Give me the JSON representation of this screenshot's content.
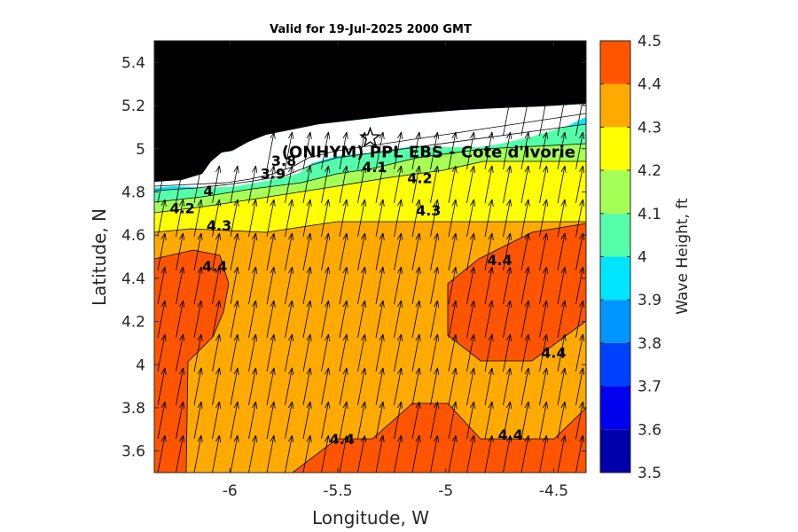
{
  "chart_data": {
    "type": "heatmap",
    "title": "Valid for 19-Jul-2025 2000 GMT",
    "xlabel": "Longitude, W",
    "ylabel": "Latitude, N",
    "xlim": [
      -6.35,
      -4.35
    ],
    "ylim": [
      3.5,
      5.5
    ],
    "xticks": [
      -6,
      -5.5,
      -5,
      -4.5
    ],
    "xtick_labels": [
      "-6",
      "-5.5",
      "-5",
      "-4.5"
    ],
    "yticks": [
      3.6,
      3.8,
      4.0,
      4.2,
      4.4,
      4.6,
      4.8,
      5.0,
      5.2,
      5.4
    ],
    "ytick_labels": [
      "3.6",
      "3.8",
      "4",
      "4.2",
      "4.4",
      "4.6",
      "4.8",
      "5",
      "5.2",
      "5.4"
    ],
    "colorbar": {
      "label": "Wave Height, ft",
      "range": [
        3.5,
        4.5
      ],
      "ticks": [
        "3.5",
        "3.6",
        "3.7",
        "3.8",
        "3.9",
        "4",
        "4.1",
        "4.2",
        "4.3",
        "4.4",
        "4.5"
      ],
      "levels": [
        {
          "from": 3.5,
          "to": 3.6,
          "color": "#0000aa"
        },
        {
          "from": 3.6,
          "to": 3.7,
          "color": "#0000ee"
        },
        {
          "from": 3.7,
          "to": 3.8,
          "color": "#0040ff"
        },
        {
          "from": 3.8,
          "to": 3.9,
          "color": "#0095ff"
        },
        {
          "from": 3.9,
          "to": 4.0,
          "color": "#00e5ff"
        },
        {
          "from": 4.0,
          "to": 4.1,
          "color": "#55ffa9"
        },
        {
          "from": 4.1,
          "to": 4.2,
          "color": "#a5ff57"
        },
        {
          "from": 4.2,
          "to": 4.3,
          "color": "#ffff00"
        },
        {
          "from": 4.3,
          "to": 4.4,
          "color": "#ffaa00"
        },
        {
          "from": 4.4,
          "to": 4.5,
          "color": "#ff5500"
        }
      ]
    },
    "station": {
      "label": "(ONHYM) PPL EBS  - Cote d'Ivorie",
      "lon": -5.35,
      "lat": 5.05
    },
    "contour_labels": [
      {
        "text": "3.8",
        "lon": -5.75,
        "lat": 4.93
      },
      {
        "text": "3.9",
        "lon": -5.8,
        "lat": 4.87
      },
      {
        "text": "4.1",
        "lon": -5.33,
        "lat": 4.9
      },
      {
        "text": "4.2",
        "lon": -5.12,
        "lat": 4.85
      },
      {
        "text": "4",
        "lon": -6.1,
        "lat": 4.79
      },
      {
        "text": "4.2",
        "lon": -6.22,
        "lat": 4.71
      },
      {
        "text": "4.3",
        "lon": -6.05,
        "lat": 4.63
      },
      {
        "text": "4.3",
        "lon": -5.08,
        "lat": 4.7
      },
      {
        "text": "4.4",
        "lon": -6.07,
        "lat": 4.44
      },
      {
        "text": "4.4",
        "lon": -4.75,
        "lat": 4.47
      },
      {
        "text": "4.4",
        "lon": -4.5,
        "lat": 4.04
      },
      {
        "text": "4.4",
        "lon": -5.48,
        "lat": 3.64
      },
      {
        "text": "4.4",
        "lon": -4.7,
        "lat": 3.66
      }
    ],
    "wave_direction": "northward, slight eastward tilt"
  }
}
